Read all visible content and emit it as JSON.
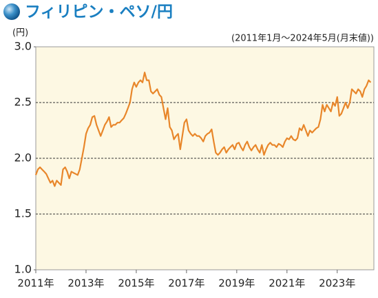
{
  "chart_data": {
    "type": "line",
    "title": "フィリピン・ペソ/円",
    "y_label": "(円)",
    "subtitle": "(2011年1月～2024年5月(月末値))",
    "categories": [
      "2011年",
      null,
      null,
      null,
      null,
      null,
      null,
      null,
      null,
      null,
      null,
      null,
      null,
      null,
      null,
      null,
      null,
      null,
      null,
      null,
      null,
      null,
      null,
      null,
      "2013年",
      null,
      null,
      null,
      null,
      null,
      null,
      null,
      null,
      null,
      null,
      null,
      null,
      null,
      null,
      null,
      null,
      null,
      null,
      null,
      null,
      null,
      null,
      null,
      "2015年",
      null,
      null,
      null,
      null,
      null,
      null,
      null,
      null,
      null,
      null,
      null,
      null,
      null,
      null,
      null,
      null,
      null,
      null,
      null,
      null,
      null,
      null,
      null,
      "2017年",
      null,
      null,
      null,
      null,
      null,
      null,
      null,
      null,
      null,
      null,
      null,
      null,
      null,
      null,
      null,
      null,
      null,
      null,
      null,
      null,
      null,
      null,
      null,
      "2019年",
      null,
      null,
      null,
      null,
      null,
      null,
      null,
      null,
      null,
      null,
      null,
      null,
      null,
      null,
      null,
      null,
      null,
      null,
      null,
      null,
      null,
      null,
      null,
      "2021年",
      null,
      null,
      null,
      null,
      null,
      null,
      null,
      null,
      null,
      null,
      null,
      null,
      null,
      null,
      null,
      null,
      null,
      null,
      null,
      null,
      null,
      null,
      null,
      "2023年",
      null,
      null,
      null,
      null,
      null,
      null,
      null,
      null,
      null,
      null,
      null,
      null,
      null,
      null,
      null,
      null
    ],
    "values": [
      1.85,
      1.9,
      1.92,
      1.9,
      1.88,
      1.86,
      1.82,
      1.78,
      1.8,
      1.75,
      1.8,
      1.78,
      1.76,
      1.9,
      1.92,
      1.88,
      1.82,
      1.88,
      1.87,
      1.86,
      1.85,
      1.9,
      2.0,
      2.1,
      2.22,
      2.27,
      2.3,
      2.37,
      2.38,
      2.3,
      2.25,
      2.2,
      2.25,
      2.3,
      2.33,
      2.37,
      2.28,
      2.3,
      2.3,
      2.32,
      2.32,
      2.34,
      2.36,
      2.4,
      2.45,
      2.5,
      2.62,
      2.68,
      2.64,
      2.68,
      2.7,
      2.68,
      2.77,
      2.7,
      2.7,
      2.6,
      2.58,
      2.6,
      2.62,
      2.57,
      2.55,
      2.45,
      2.35,
      2.45,
      2.28,
      2.25,
      2.17,
      2.2,
      2.22,
      2.08,
      2.2,
      2.32,
      2.35,
      2.25,
      2.22,
      2.2,
      2.22,
      2.2,
      2.2,
      2.18,
      2.15,
      2.2,
      2.22,
      2.23,
      2.26,
      2.15,
      2.05,
      2.03,
      2.05,
      2.08,
      2.1,
      2.05,
      2.08,
      2.1,
      2.12,
      2.08,
      2.13,
      2.14,
      2.1,
      2.07,
      2.12,
      2.15,
      2.1,
      2.07,
      2.1,
      2.12,
      2.08,
      2.05,
      2.12,
      2.03,
      2.08,
      2.12,
      2.14,
      2.12,
      2.12,
      2.1,
      2.13,
      2.12,
      2.1,
      2.15,
      2.18,
      2.17,
      2.2,
      2.17,
      2.16,
      2.18,
      2.27,
      2.25,
      2.3,
      2.25,
      2.2,
      2.25,
      2.23,
      2.25,
      2.27,
      2.28,
      2.35,
      2.48,
      2.42,
      2.48,
      2.45,
      2.42,
      2.5,
      2.47,
      2.55,
      2.38,
      2.4,
      2.45,
      2.5,
      2.45,
      2.5,
      2.62,
      2.6,
      2.58,
      2.62,
      2.6,
      2.55,
      2.62,
      2.65,
      2.7,
      2.68
    ],
    "color": "#e8862a",
    "ylim": [
      1,
      3
    ],
    "yticks": [
      {
        "value": 1,
        "label": "1.0"
      },
      1.5,
      {
        "value": 2,
        "label": "2.0"
      },
      2.5,
      {
        "value": 3,
        "label": "3.0"
      }
    ],
    "grid": true
  }
}
